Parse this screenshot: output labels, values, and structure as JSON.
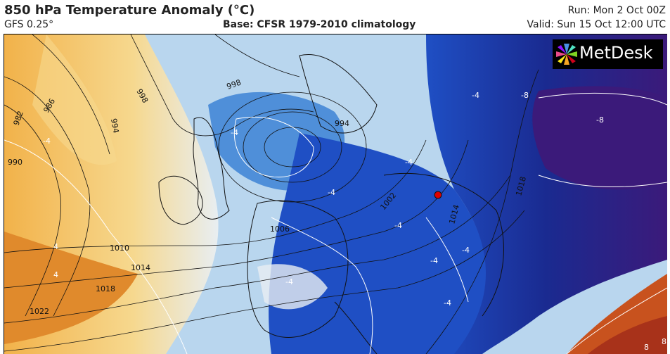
{
  "header": {
    "title": "850 hPa Temperature Anomaly (°C)",
    "model": "GFS 0.25°",
    "base": "Base: CFSR 1979-2010 climatology",
    "run": "Run: Mon 2 Oct 00Z",
    "valid": "Valid: Sun 15 Oct 12:00 UTC"
  },
  "logo": {
    "text": "MetDesk",
    "icon": "sunburst-logo-icon",
    "colors": [
      "#e94b8a",
      "#f5a623",
      "#7ed321",
      "#4a90e2",
      "#9013fe"
    ]
  },
  "colors": {
    "warm_strong": "#c8521e",
    "warm": "#f2b24a",
    "warm_light": "#f6d88e",
    "neutral": "#e8eef2",
    "cool_light": "#b9d6ee",
    "cool": "#4f8fd9",
    "cold": "#1f4fc4",
    "very_cold": "#1a2a90",
    "extreme_cold": "#3b1a7a"
  },
  "isobar_labels": [
    "998",
    "994",
    "986",
    "982",
    "990",
    "998",
    "994",
    "1002",
    "1006",
    "1010",
    "1014",
    "1018",
    "1022",
    "1014",
    "1018"
  ],
  "anomaly_labels": [
    "-8",
    "-8",
    "-4",
    "-4",
    "-4",
    "-4",
    "4",
    "4",
    "-4",
    "-4",
    "-4",
    "-4",
    "-4",
    "-4",
    "8",
    "8"
  ],
  "marker": {
    "name": "location-marker",
    "color": "#e00000"
  }
}
